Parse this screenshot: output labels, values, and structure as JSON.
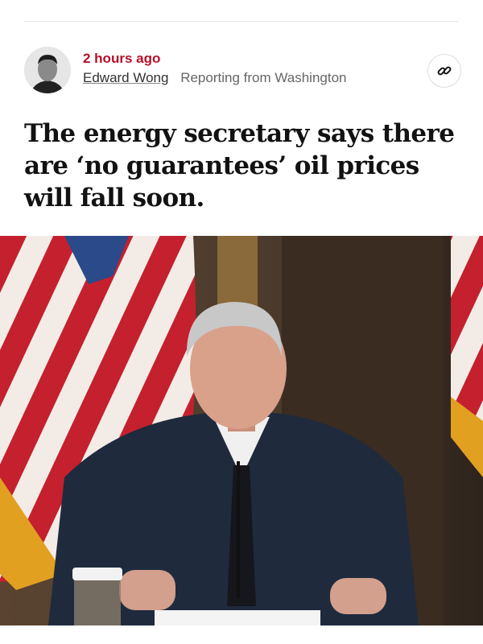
{
  "meta": {
    "timestamp": "2 hours ago",
    "author": "Edward Wong",
    "dateline": "Reporting from Washington"
  },
  "headline": "The energy secretary says there are ‘no guarantees’ oil prices will fall soon.",
  "icons": {
    "share": "link-icon"
  },
  "colors": {
    "timestamp": "#b5102a",
    "text": "#121212"
  }
}
